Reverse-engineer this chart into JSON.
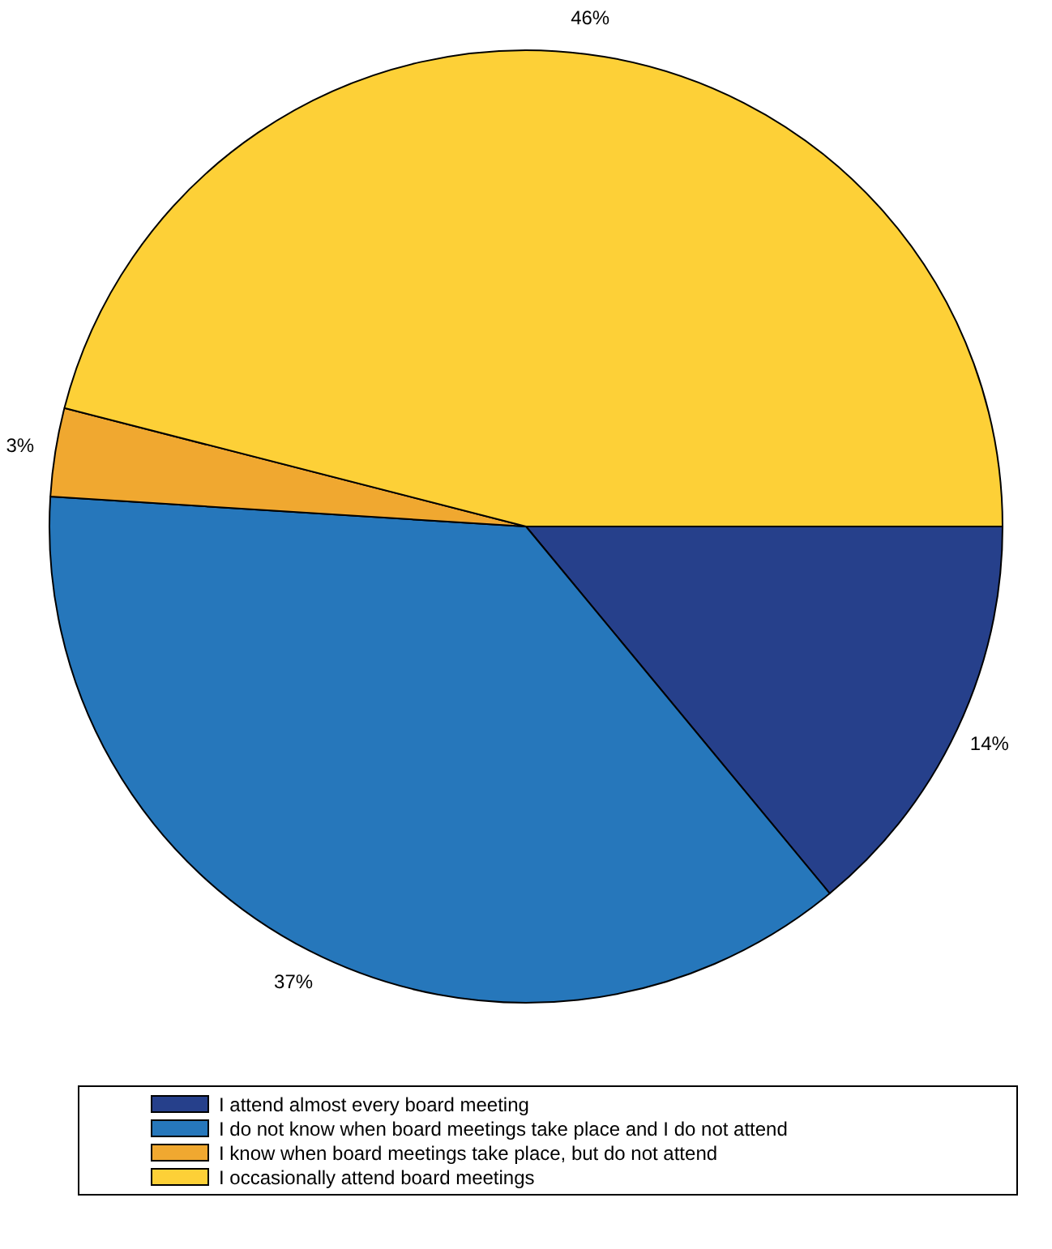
{
  "chart_data": {
    "type": "pie",
    "categories": [
      "I attend almost every board meeting",
      "I do not know when board meetings take place and I do not attend",
      "I know when board meetings take place, but do not attend",
      "I occasionally attend board meetings"
    ],
    "values": [
      14,
      37,
      3,
      46
    ],
    "colors": [
      "#26408b",
      "#2677bb",
      "#f0a830",
      "#fdd037"
    ],
    "value_labels": [
      "14%",
      "37%",
      "3%",
      "46%"
    ],
    "legend": "bottom"
  }
}
